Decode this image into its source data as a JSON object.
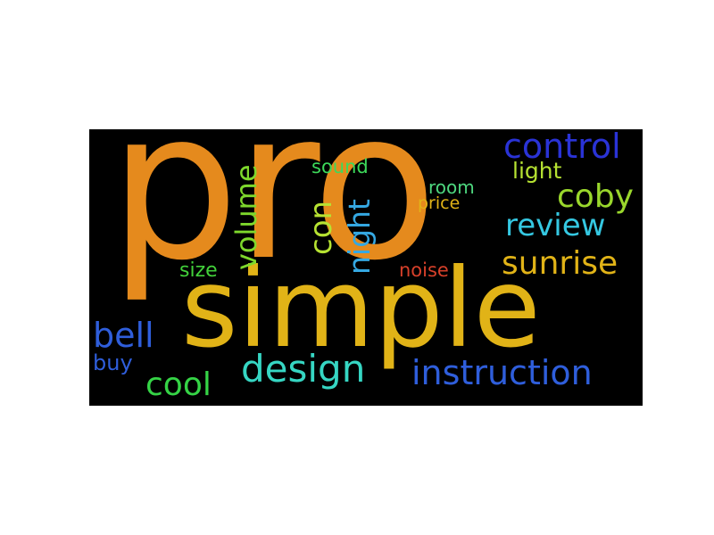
{
  "words": {
    "pro": {
      "text": "pro",
      "color": "#E58A1D"
    },
    "simple": {
      "text": "simple",
      "color": "#E1B317"
    },
    "control": {
      "text": "control",
      "color": "#2A33D6"
    },
    "coby": {
      "text": "coby",
      "color": "#9AD72C"
    },
    "review": {
      "text": "review",
      "color": "#35C8E2"
    },
    "sunrise": {
      "text": "sunrise",
      "color": "#E1B317"
    },
    "instruction": {
      "text": "instruction",
      "color": "#2F5EDB"
    },
    "design": {
      "text": "design",
      "color": "#36D6C3"
    },
    "cool": {
      "text": "cool",
      "color": "#35D446"
    },
    "bell": {
      "text": "bell",
      "color": "#2F5EDB"
    },
    "buy": {
      "text": "buy",
      "color": "#2F5EDB"
    },
    "size": {
      "text": "size",
      "color": "#42D03A"
    },
    "noise": {
      "text": "noise",
      "color": "#D7402A"
    },
    "price": {
      "text": "price",
      "color": "#E1B317"
    },
    "room": {
      "text": "room",
      "color": "#4ED87F"
    },
    "light": {
      "text": "light",
      "color": "#B6E232"
    },
    "sound": {
      "text": "sound",
      "color": "#3DD95A"
    },
    "volume": {
      "text": "volume",
      "color": "#7ED82C"
    },
    "con": {
      "text": "con",
      "color": "#B6E232"
    },
    "night": {
      "text": "night",
      "color": "#35A8E2"
    }
  }
}
